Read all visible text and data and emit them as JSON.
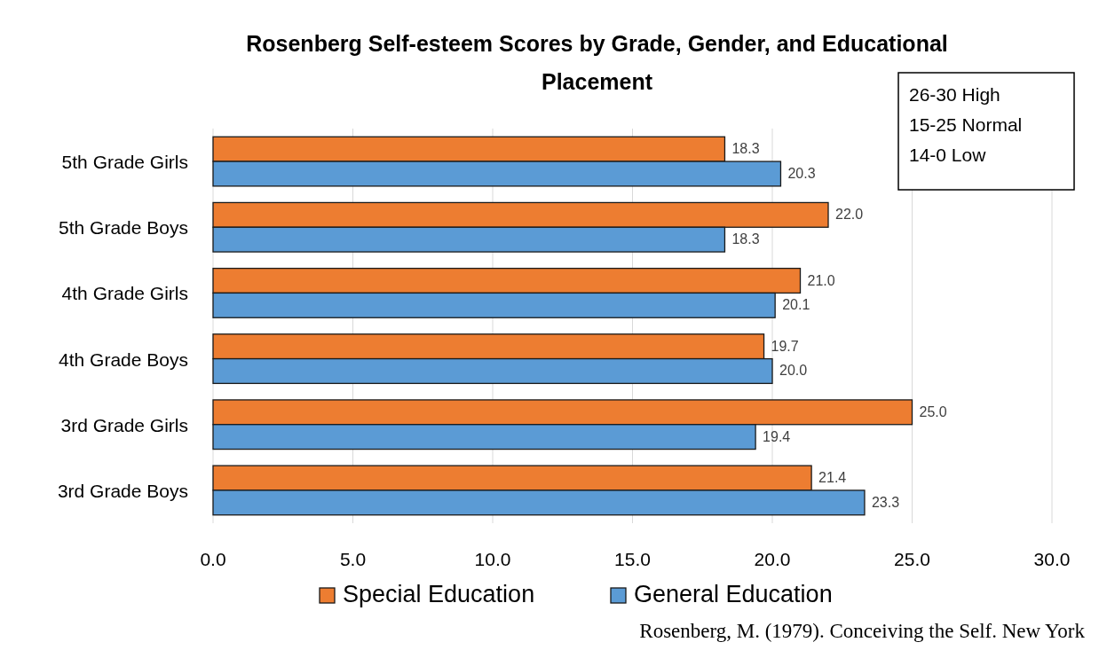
{
  "chart_data": {
    "type": "bar",
    "orientation": "horizontal",
    "title": "Rosenberg Self-esteem Scores by Grade, Gender, and Educational Placement",
    "categories": [
      "5th Grade Girls",
      "5th Grade Boys",
      "4th Grade Girls",
      "4th Grade Boys",
      "3rd Grade Girls",
      "3rd Grade Boys"
    ],
    "series": [
      {
        "name": "Special Education",
        "color": "#ed7d31",
        "values": [
          18.3,
          22.0,
          21.0,
          19.7,
          25.0,
          21.4
        ],
        "value_labels": [
          "18.3",
          "22.0",
          "21.0",
          "19.7",
          "25.0",
          "21.4"
        ]
      },
      {
        "name": "General Education",
        "color": "#5b9bd5",
        "values": [
          20.3,
          18.3,
          20.1,
          20.0,
          19.4,
          23.3
        ],
        "value_labels": [
          "20.3",
          "18.3",
          "20.1",
          "20.0",
          "19.4",
          "23.3"
        ]
      }
    ],
    "xlim": [
      0,
      30
    ],
    "xticks": [
      {
        "value": 0,
        "label": "0.0"
      },
      {
        "value": 5,
        "label": "5.0"
      },
      {
        "value": 10,
        "label": "10.0"
      },
      {
        "value": 15,
        "label": "15.0"
      },
      {
        "value": 20,
        "label": "20.0"
      },
      {
        "value": 25,
        "label": "25.0"
      },
      {
        "value": 30,
        "label": "30.0"
      }
    ],
    "grid": "x",
    "legend": "bottom",
    "annotations": [
      "26-30 High",
      "15-25 Normal",
      "14-0 Low",
      "Rosenberg, M. (1979). Conceiving the Self. New York"
    ]
  }
}
